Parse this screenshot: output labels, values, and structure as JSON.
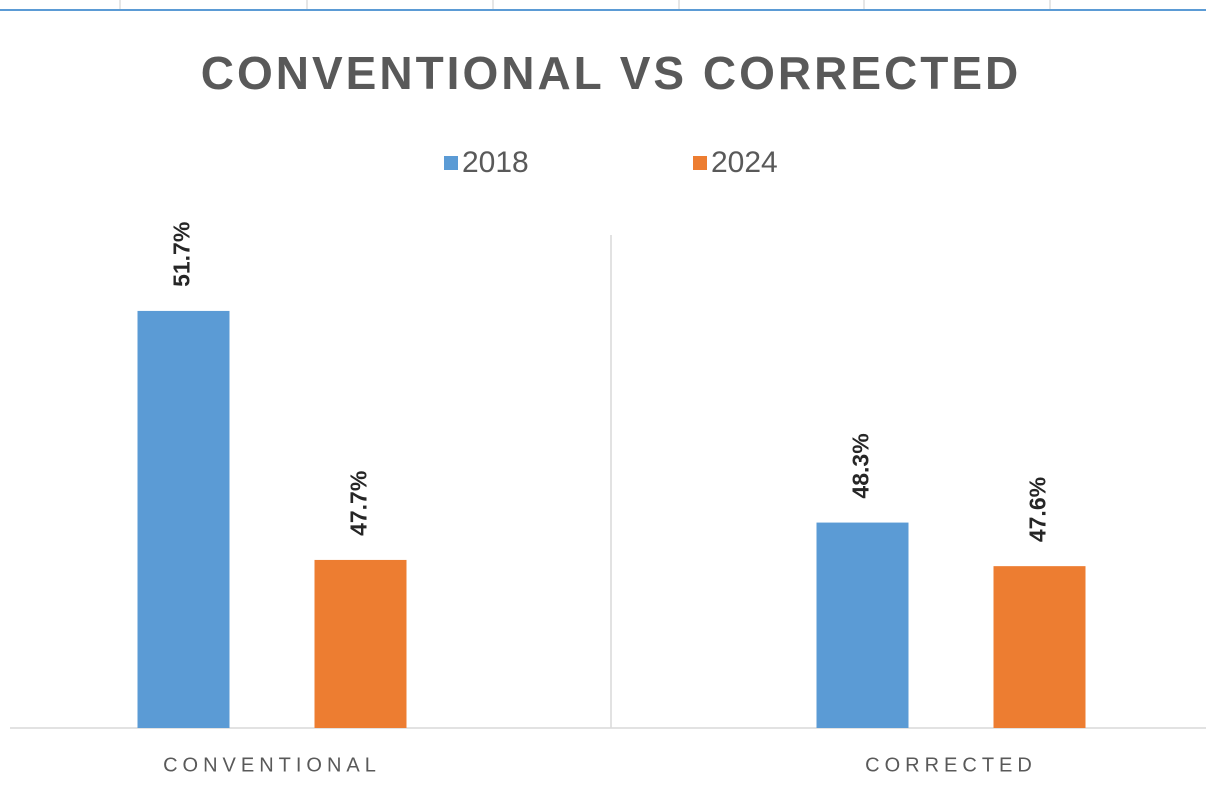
{
  "chart_data": {
    "type": "bar",
    "title": "CONVENTIONAL VS CORRECTED",
    "categories": [
      "CONVENTIONAL",
      "CORRECTED"
    ],
    "series": [
      {
        "name": "2018",
        "color": "#5b9bd5",
        "values": [
          51.7,
          48.3
        ],
        "value_labels": [
          "51.7%",
          "48.3%"
        ]
      },
      {
        "name": "2024",
        "color": "#ed7d31",
        "values": [
          47.7,
          47.6
        ],
        "value_labels": [
          "47.7%",
          "47.6%"
        ]
      }
    ],
    "ylim": [
      45,
      53
    ],
    "legend": "top"
  }
}
